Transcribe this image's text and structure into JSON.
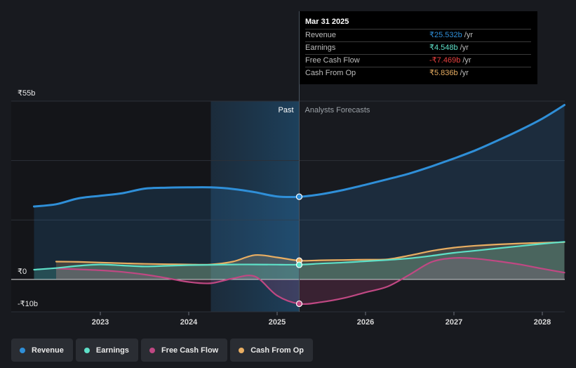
{
  "tooltip": {
    "date": "Mar 31 2025",
    "rows": [
      {
        "label": "Revenue",
        "value": "₹25.532b",
        "unit": "/yr",
        "color": "#2f8fd8"
      },
      {
        "label": "Earnings",
        "value": "₹4.548b",
        "unit": "/yr",
        "color": "#5ee0c8"
      },
      {
        "label": "Free Cash Flow",
        "value": "-₹7.469b",
        "unit": "/yr",
        "color": "#e8403f"
      },
      {
        "label": "Cash From Op",
        "value": "₹5.836b",
        "unit": "/yr",
        "color": "#e9ae62"
      }
    ]
  },
  "legend": [
    {
      "label": "Revenue",
      "color": "#2f8fd8"
    },
    {
      "label": "Earnings",
      "color": "#5ee0c8"
    },
    {
      "label": "Free Cash Flow",
      "color": "#c04883"
    },
    {
      "label": "Cash From Op",
      "color": "#e9ae62"
    }
  ],
  "chart_data": {
    "type": "line",
    "title": "",
    "xlabel": "",
    "ylabel": "",
    "unit": "₹ billions",
    "xlim": [
      2022.2,
      2028.25
    ],
    "ylim": [
      -10,
      55
    ],
    "ytick_labels": [
      {
        "value": 55,
        "label": "₹55b"
      },
      {
        "value": 0,
        "label": "₹0"
      },
      {
        "value": -10,
        "label": "-₹10b"
      }
    ],
    "xticks": [
      {
        "value": 2023,
        "label": "2023"
      },
      {
        "value": 2024,
        "label": "2024"
      },
      {
        "value": 2025,
        "label": "2025"
      },
      {
        "value": 2026,
        "label": "2026"
      },
      {
        "value": 2027,
        "label": "2027"
      },
      {
        "value": 2028,
        "label": "2028"
      }
    ],
    "past_label": "Past",
    "forecast_label": "Analysts Forecasts",
    "divider_x": 2025.25,
    "highlight_range": [
      2024.25,
      2025.25
    ],
    "series": [
      {
        "name": "Revenue",
        "color": "#2f8fd8",
        "fill": true,
        "points": [
          [
            2022.25,
            22.5
          ],
          [
            2022.5,
            23.2
          ],
          [
            2022.75,
            25
          ],
          [
            2023,
            25.8
          ],
          [
            2023.25,
            26.6
          ],
          [
            2023.5,
            28
          ],
          [
            2023.75,
            28.3
          ],
          [
            2024,
            28.4
          ],
          [
            2024.25,
            28.4
          ],
          [
            2024.5,
            27.9
          ],
          [
            2024.75,
            26.9
          ],
          [
            2025,
            25.6
          ],
          [
            2025.25,
            25.5
          ],
          [
            2025.5,
            26.3
          ],
          [
            2025.75,
            27.6
          ],
          [
            2026,
            29.2
          ],
          [
            2026.25,
            30.9
          ],
          [
            2026.5,
            32.7
          ],
          [
            2026.75,
            34.9
          ],
          [
            2027,
            37.3
          ],
          [
            2027.25,
            39.9
          ],
          [
            2027.5,
            42.9
          ],
          [
            2027.75,
            46.1
          ],
          [
            2028,
            49.6
          ],
          [
            2028.25,
            53.8
          ]
        ]
      },
      {
        "name": "Cash From Op",
        "color": "#e9ae62",
        "fill": true,
        "points": [
          [
            2022.5,
            5.5
          ],
          [
            2022.75,
            5.4
          ],
          [
            2023,
            5.2
          ],
          [
            2023.25,
            5
          ],
          [
            2023.5,
            4.8
          ],
          [
            2023.75,
            4.7
          ],
          [
            2024,
            4.6
          ],
          [
            2024.25,
            4.6
          ],
          [
            2024.5,
            5.5
          ],
          [
            2024.75,
            7.5
          ],
          [
            2025,
            6.8
          ],
          [
            2025.25,
            5.8
          ],
          [
            2025.5,
            5.9
          ],
          [
            2025.75,
            6
          ],
          [
            2026,
            6.1
          ],
          [
            2026.25,
            6.2
          ],
          [
            2026.5,
            7.4
          ],
          [
            2026.75,
            8.8
          ],
          [
            2027,
            9.8
          ],
          [
            2027.25,
            10.4
          ],
          [
            2027.5,
            10.8
          ],
          [
            2027.75,
            11.1
          ],
          [
            2028,
            11.3
          ],
          [
            2028.25,
            11.5
          ]
        ]
      },
      {
        "name": "Free Cash Flow",
        "color": "#c04883",
        "fill": true,
        "points": [
          [
            2022.5,
            3.4
          ],
          [
            2022.75,
            3.1
          ],
          [
            2023,
            2.8
          ],
          [
            2023.25,
            2.3
          ],
          [
            2023.5,
            1.5
          ],
          [
            2023.75,
            0.4
          ],
          [
            2024,
            -0.8
          ],
          [
            2024.25,
            -1.2
          ],
          [
            2024.5,
            0.3
          ],
          [
            2024.75,
            0.9
          ],
          [
            2025,
            -5
          ],
          [
            2025.25,
            -7.5
          ],
          [
            2025.5,
            -7
          ],
          [
            2025.75,
            -5.8
          ],
          [
            2026,
            -4
          ],
          [
            2026.25,
            -2.2
          ],
          [
            2026.5,
            1.5
          ],
          [
            2026.75,
            5.4
          ],
          [
            2027,
            6.6
          ],
          [
            2027.25,
            6.4
          ],
          [
            2027.5,
            5.6
          ],
          [
            2027.75,
            4.6
          ],
          [
            2028,
            3.3
          ],
          [
            2028.25,
            2.1
          ]
        ]
      },
      {
        "name": "Earnings",
        "color": "#5ee0c8",
        "fill": true,
        "points": [
          [
            2022.25,
            3
          ],
          [
            2022.5,
            3.5
          ],
          [
            2022.75,
            4.2
          ],
          [
            2023,
            4.6
          ],
          [
            2023.25,
            4.3
          ],
          [
            2023.5,
            4
          ],
          [
            2023.75,
            4.2
          ],
          [
            2024,
            4.4
          ],
          [
            2024.25,
            4.5
          ],
          [
            2024.5,
            4.6
          ],
          [
            2024.75,
            4.6
          ],
          [
            2025,
            4.55
          ],
          [
            2025.25,
            4.55
          ],
          [
            2025.5,
            4.9
          ],
          [
            2025.75,
            5.2
          ],
          [
            2026,
            5.6
          ],
          [
            2026.25,
            6
          ],
          [
            2026.5,
            6.5
          ],
          [
            2026.75,
            7.3
          ],
          [
            2027,
            8.2
          ],
          [
            2027.25,
            8.9
          ],
          [
            2027.5,
            9.6
          ],
          [
            2027.75,
            10.3
          ],
          [
            2028,
            11
          ],
          [
            2028.25,
            11.6
          ]
        ]
      }
    ],
    "highlight_points": [
      {
        "series": "Revenue",
        "x": 2025.25,
        "y": 25.5
      },
      {
        "series": "Cash From Op",
        "x": 2025.25,
        "y": 5.8
      },
      {
        "series": "Earnings",
        "x": 2025.25,
        "y": 4.5
      },
      {
        "series": "Free Cash Flow",
        "x": 2025.25,
        "y": -7.5
      }
    ]
  }
}
